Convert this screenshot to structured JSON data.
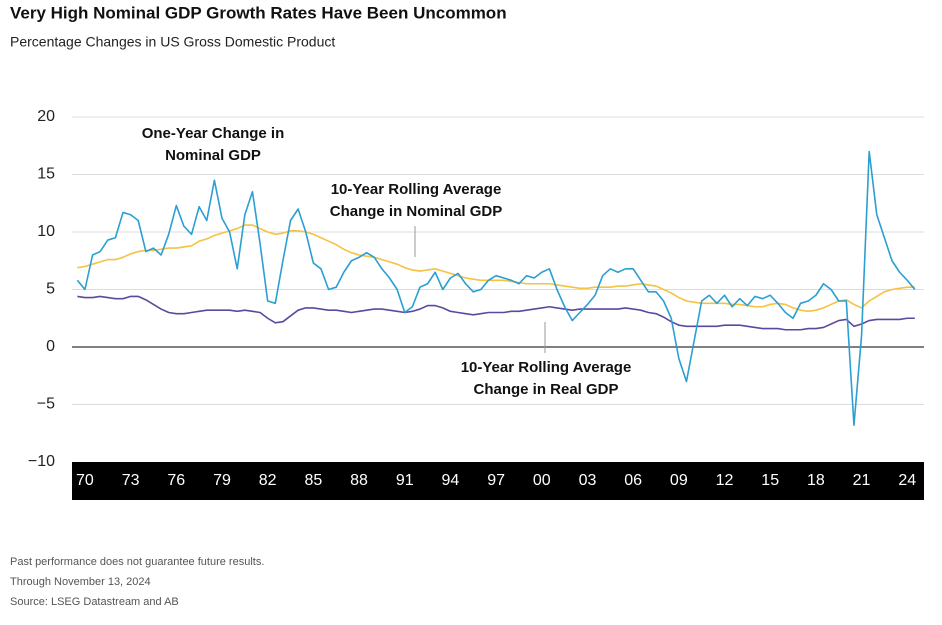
{
  "chart_data": {
    "type": "line",
    "title": "Very High Nominal GDP Growth Rates Have Been Uncommon",
    "subtitle": "Percentage Changes in US Gross Domestic Product",
    "x": [
      1969.5,
      1970,
      1970.5,
      1971,
      1971.5,
      1972,
      1972.5,
      1973,
      1973.5,
      1974,
      1974.5,
      1975,
      1975.5,
      1976,
      1976.5,
      1977,
      1977.5,
      1978,
      1978.5,
      1979,
      1979.5,
      1980,
      1980.5,
      1981,
      1981.5,
      1982,
      1982.5,
      1983,
      1983.5,
      1984,
      1984.5,
      1985,
      1985.5,
      1986,
      1986.5,
      1987,
      1987.5,
      1988,
      1988.5,
      1989,
      1989.5,
      1990,
      1990.5,
      1991,
      1991.5,
      1992,
      1992.5,
      1993,
      1993.5,
      1994,
      1994.5,
      1995,
      1995.5,
      1996,
      1996.5,
      1997,
      1997.5,
      1998,
      1998.5,
      1999,
      1999.5,
      2000,
      2000.5,
      2001,
      2001.5,
      2002,
      2002.5,
      2003,
      2003.5,
      2004,
      2004.5,
      2005,
      2005.5,
      2006,
      2006.5,
      2007,
      2007.5,
      2008,
      2008.5,
      2009,
      2009.5,
      2010,
      2010.5,
      2011,
      2011.5,
      2012,
      2012.5,
      2013,
      2013.5,
      2014,
      2014.5,
      2015,
      2015.5,
      2016,
      2016.5,
      2017,
      2017.5,
      2018,
      2018.5,
      2019,
      2019.5,
      2020,
      2020.5,
      2021,
      2021.5,
      2022,
      2022.5,
      2023,
      2023.5,
      2024,
      2024.5
    ],
    "series": [
      {
        "name": "One-Year Change in Nominal GDP",
        "color": "#2b9fd2",
        "values": [
          5.8,
          5.0,
          8.0,
          8.3,
          9.3,
          9.5,
          11.7,
          11.5,
          11.0,
          8.3,
          8.6,
          8.0,
          9.8,
          12.3,
          10.5,
          9.8,
          12.2,
          11.0,
          14.5,
          11.2,
          10.0,
          6.8,
          11.5,
          13.5,
          9.0,
          4.0,
          3.8,
          7.5,
          11.0,
          12.0,
          10.0,
          7.3,
          6.8,
          5.0,
          5.2,
          6.5,
          7.5,
          7.8,
          8.2,
          7.8,
          6.8,
          6.0,
          5.0,
          3.0,
          3.5,
          5.2,
          5.5,
          6.5,
          5.0,
          6.0,
          6.4,
          5.5,
          4.8,
          5.0,
          5.8,
          6.2,
          6.0,
          5.8,
          5.5,
          6.2,
          6.0,
          6.5,
          6.8,
          5.0,
          3.5,
          2.3,
          3.0,
          3.7,
          4.5,
          6.2,
          6.8,
          6.5,
          6.8,
          6.8,
          5.8,
          4.8,
          4.8,
          4.0,
          2.5,
          -1.0,
          -3.0,
          0.5,
          4.0,
          4.5,
          3.8,
          4.5,
          3.5,
          4.2,
          3.6,
          4.4,
          4.2,
          4.5,
          3.8,
          3.0,
          2.5,
          3.8,
          4.0,
          4.5,
          5.5,
          5.0,
          4.0,
          4.0,
          -6.8,
          1.0,
          17.0,
          11.5,
          9.5,
          7.5,
          6.5,
          5.8,
          5.0
        ]
      },
      {
        "name": "10-Year Rolling Average Change in Nominal GDP",
        "color": "#f5c242",
        "values": [
          6.9,
          7.0,
          7.2,
          7.4,
          7.6,
          7.6,
          7.8,
          8.1,
          8.3,
          8.4,
          8.4,
          8.5,
          8.6,
          8.6,
          8.7,
          8.8,
          9.2,
          9.4,
          9.7,
          9.9,
          10.1,
          10.3,
          10.6,
          10.6,
          10.3,
          10.0,
          9.8,
          9.9,
          10.1,
          10.1,
          10.0,
          9.8,
          9.5,
          9.2,
          8.9,
          8.5,
          8.2,
          8.0,
          7.9,
          7.8,
          7.6,
          7.4,
          7.2,
          6.9,
          6.7,
          6.6,
          6.7,
          6.8,
          6.6,
          6.4,
          6.2,
          6.0,
          5.9,
          5.8,
          5.8,
          5.8,
          5.8,
          5.7,
          5.6,
          5.5,
          5.5,
          5.5,
          5.5,
          5.4,
          5.3,
          5.2,
          5.1,
          5.1,
          5.2,
          5.2,
          5.2,
          5.3,
          5.3,
          5.4,
          5.5,
          5.4,
          5.3,
          5.0,
          4.7,
          4.3,
          4.0,
          3.9,
          3.8,
          3.8,
          3.8,
          3.8,
          3.7,
          3.7,
          3.6,
          3.5,
          3.5,
          3.7,
          3.8,
          3.7,
          3.4,
          3.2,
          3.1,
          3.2,
          3.4,
          3.7,
          4.0,
          4.1,
          3.7,
          3.4,
          4.0,
          4.4,
          4.8,
          5.0,
          5.1,
          5.2,
          5.2
        ]
      },
      {
        "name": "10-Year Rolling Average Change in Real GDP",
        "color": "#5a4a9f",
        "values": [
          4.4,
          4.3,
          4.3,
          4.4,
          4.3,
          4.2,
          4.2,
          4.4,
          4.4,
          4.1,
          3.7,
          3.3,
          3.0,
          2.9,
          2.9,
          3.0,
          3.1,
          3.2,
          3.2,
          3.2,
          3.2,
          3.1,
          3.2,
          3.1,
          3.0,
          2.5,
          2.1,
          2.2,
          2.7,
          3.2,
          3.4,
          3.4,
          3.3,
          3.2,
          3.2,
          3.1,
          3.0,
          3.1,
          3.2,
          3.3,
          3.3,
          3.2,
          3.1,
          3.0,
          3.1,
          3.3,
          3.6,
          3.6,
          3.4,
          3.1,
          3.0,
          2.9,
          2.8,
          2.9,
          3.0,
          3.0,
          3.0,
          3.1,
          3.1,
          3.2,
          3.3,
          3.4,
          3.5,
          3.4,
          3.3,
          3.2,
          3.3,
          3.3,
          3.3,
          3.3,
          3.3,
          3.3,
          3.4,
          3.3,
          3.2,
          3.0,
          2.9,
          2.6,
          2.2,
          1.9,
          1.8,
          1.8,
          1.8,
          1.8,
          1.8,
          1.9,
          1.9,
          1.9,
          1.8,
          1.7,
          1.6,
          1.6,
          1.6,
          1.5,
          1.5,
          1.5,
          1.6,
          1.6,
          1.7,
          2.0,
          2.3,
          2.4,
          1.8,
          2.0,
          2.3,
          2.4,
          2.4,
          2.4,
          2.4,
          2.5,
          2.5
        ]
      }
    ],
    "annotations": [
      {
        "lines": [
          "One-Year Change in",
          "Nominal GDP"
        ]
      },
      {
        "lines": [
          "10-Year Rolling Average",
          "Change in Nominal GDP"
        ]
      },
      {
        "lines": [
          "10-Year Rolling Average",
          "Change in Real GDP"
        ]
      }
    ],
    "xlim": [
      1969.15,
      2025.1
    ],
    "xticks": [
      {
        "value": 1970,
        "label": "70"
      },
      {
        "value": 1973,
        "label": "73"
      },
      {
        "value": 1976,
        "label": "76"
      },
      {
        "value": 1979,
        "label": "79"
      },
      {
        "value": 1982,
        "label": "82"
      },
      {
        "value": 1985,
        "label": "85"
      },
      {
        "value": 1988,
        "label": "88"
      },
      {
        "value": 1991,
        "label": "91"
      },
      {
        "value": 1994,
        "label": "94"
      },
      {
        "value": 1997,
        "label": "97"
      },
      {
        "value": 2000,
        "label": "00"
      },
      {
        "value": 2003,
        "label": "03"
      },
      {
        "value": 2006,
        "label": "06"
      },
      {
        "value": 2009,
        "label": "09"
      },
      {
        "value": 2012,
        "label": "12"
      },
      {
        "value": 2015,
        "label": "15"
      },
      {
        "value": 2018,
        "label": "18"
      },
      {
        "value": 2021,
        "label": "21"
      },
      {
        "value": 2024,
        "label": "24"
      }
    ],
    "ylim": [
      -10,
      20
    ],
    "yticks": [
      20,
      15,
      10,
      5,
      0,
      {
        "value": -5,
        "label": "−5"
      },
      {
        "value": -10,
        "label": "−10"
      }
    ],
    "grid": true,
    "footnotes": [
      "Past performance does not guarantee future results.",
      "Through November 13, 2024",
      "Source: LSEG Datastream and AB"
    ]
  }
}
